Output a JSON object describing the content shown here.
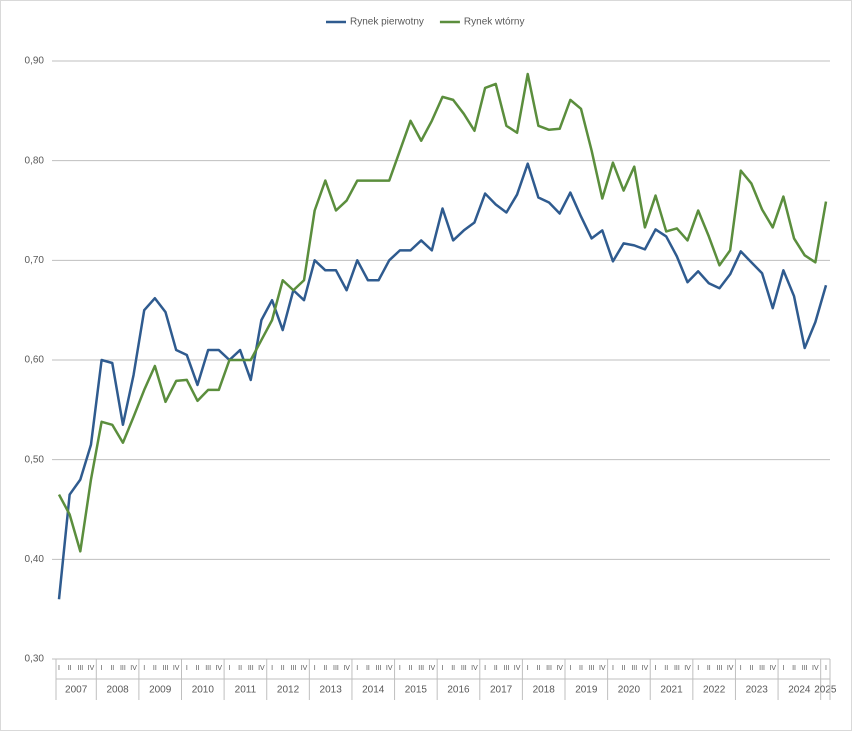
{
  "chart_data": {
    "type": "line",
    "categories": [
      "I",
      "II",
      "III",
      "IV",
      "I",
      "II",
      "III",
      "IV",
      "I",
      "II",
      "III",
      "IV",
      "I",
      "II",
      "III",
      "IV",
      "I",
      "II",
      "III",
      "IV",
      "I",
      "II",
      "III",
      "IV",
      "I",
      "II",
      "III",
      "IV",
      "I",
      "II",
      "III",
      "IV",
      "I",
      "II",
      "III",
      "IV",
      "I",
      "II",
      "III",
      "IV",
      "I",
      "II",
      "III",
      "IV",
      "I",
      "II",
      "III",
      "IV",
      "I",
      "II",
      "III",
      "IV",
      "I",
      "II",
      "III",
      "IV",
      "I",
      "II",
      "III",
      "IV",
      "I",
      "II",
      "III",
      "IV",
      "I",
      "II",
      "III",
      "IV",
      "I",
      "II",
      "III",
      "IV",
      "I"
    ],
    "year_labels": [
      "2007",
      "2008",
      "2009",
      "2010",
      "2011",
      "2012",
      "2013",
      "2014",
      "2015",
      "2016",
      "2017",
      "2018",
      "2019",
      "2020",
      "2021",
      "2022",
      "2023",
      "2024",
      "2025"
    ],
    "series": [
      {
        "name": "Rynek pierwotny",
        "color": "#2f5b8f",
        "values": [
          0.36,
          0.465,
          0.48,
          0.515,
          0.6,
          0.597,
          0.535,
          0.585,
          0.65,
          0.662,
          0.648,
          0.61,
          0.605,
          0.575,
          0.61,
          0.61,
          0.6,
          0.61,
          0.58,
          0.64,
          0.66,
          0.63,
          0.67,
          0.66,
          0.7,
          0.69,
          0.69,
          0.67,
          0.7,
          0.68,
          0.68,
          0.7,
          0.71,
          0.71,
          0.72,
          0.71,
          0.752,
          0.72,
          0.73,
          0.738,
          0.767,
          0.756,
          0.748,
          0.766,
          0.797,
          0.763,
          0.758,
          0.747,
          0.768,
          0.744,
          0.722,
          0.73,
          0.699,
          0.717,
          0.715,
          0.711,
          0.731,
          0.724,
          0.704,
          0.678,
          0.689,
          0.677,
          0.672,
          0.686,
          0.709,
          0.698,
          0.687,
          0.652,
          0.69,
          0.664,
          0.612,
          0.638,
          0.675
        ]
      },
      {
        "name": "Rynek wtórny",
        "color": "#5b8e3d",
        "values": [
          0.465,
          0.445,
          0.408,
          0.48,
          0.538,
          0.535,
          0.517,
          0.543,
          0.57,
          0.594,
          0.558,
          0.579,
          0.58,
          0.559,
          0.57,
          0.57,
          0.6,
          0.6,
          0.6,
          0.62,
          0.64,
          0.68,
          0.67,
          0.68,
          0.75,
          0.78,
          0.75,
          0.76,
          0.78,
          0.78,
          0.78,
          0.78,
          0.81,
          0.84,
          0.82,
          0.84,
          0.864,
          0.861,
          0.847,
          0.83,
          0.873,
          0.877,
          0.835,
          0.828,
          0.887,
          0.835,
          0.831,
          0.832,
          0.861,
          0.852,
          0.81,
          0.762,
          0.798,
          0.77,
          0.794,
          0.733,
          0.765,
          0.729,
          0.732,
          0.72,
          0.75,
          0.724,
          0.695,
          0.71,
          0.79,
          0.777,
          0.751,
          0.733,
          0.764,
          0.722,
          0.705,
          0.698,
          0.759
        ]
      }
    ],
    "ylim": [
      0.3,
      0.9
    ],
    "yticks": [
      {
        "value": 0.3,
        "label": "0,30"
      },
      {
        "value": 0.4,
        "label": "0,40"
      },
      {
        "value": 0.5,
        "label": "0,50"
      },
      {
        "value": 0.6,
        "label": "0,60"
      },
      {
        "value": 0.7,
        "label": "0,70"
      },
      {
        "value": 0.8,
        "label": "0,80"
      },
      {
        "value": 0.9,
        "label": "0,90"
      }
    ],
    "grid": true,
    "legend": "top"
  }
}
